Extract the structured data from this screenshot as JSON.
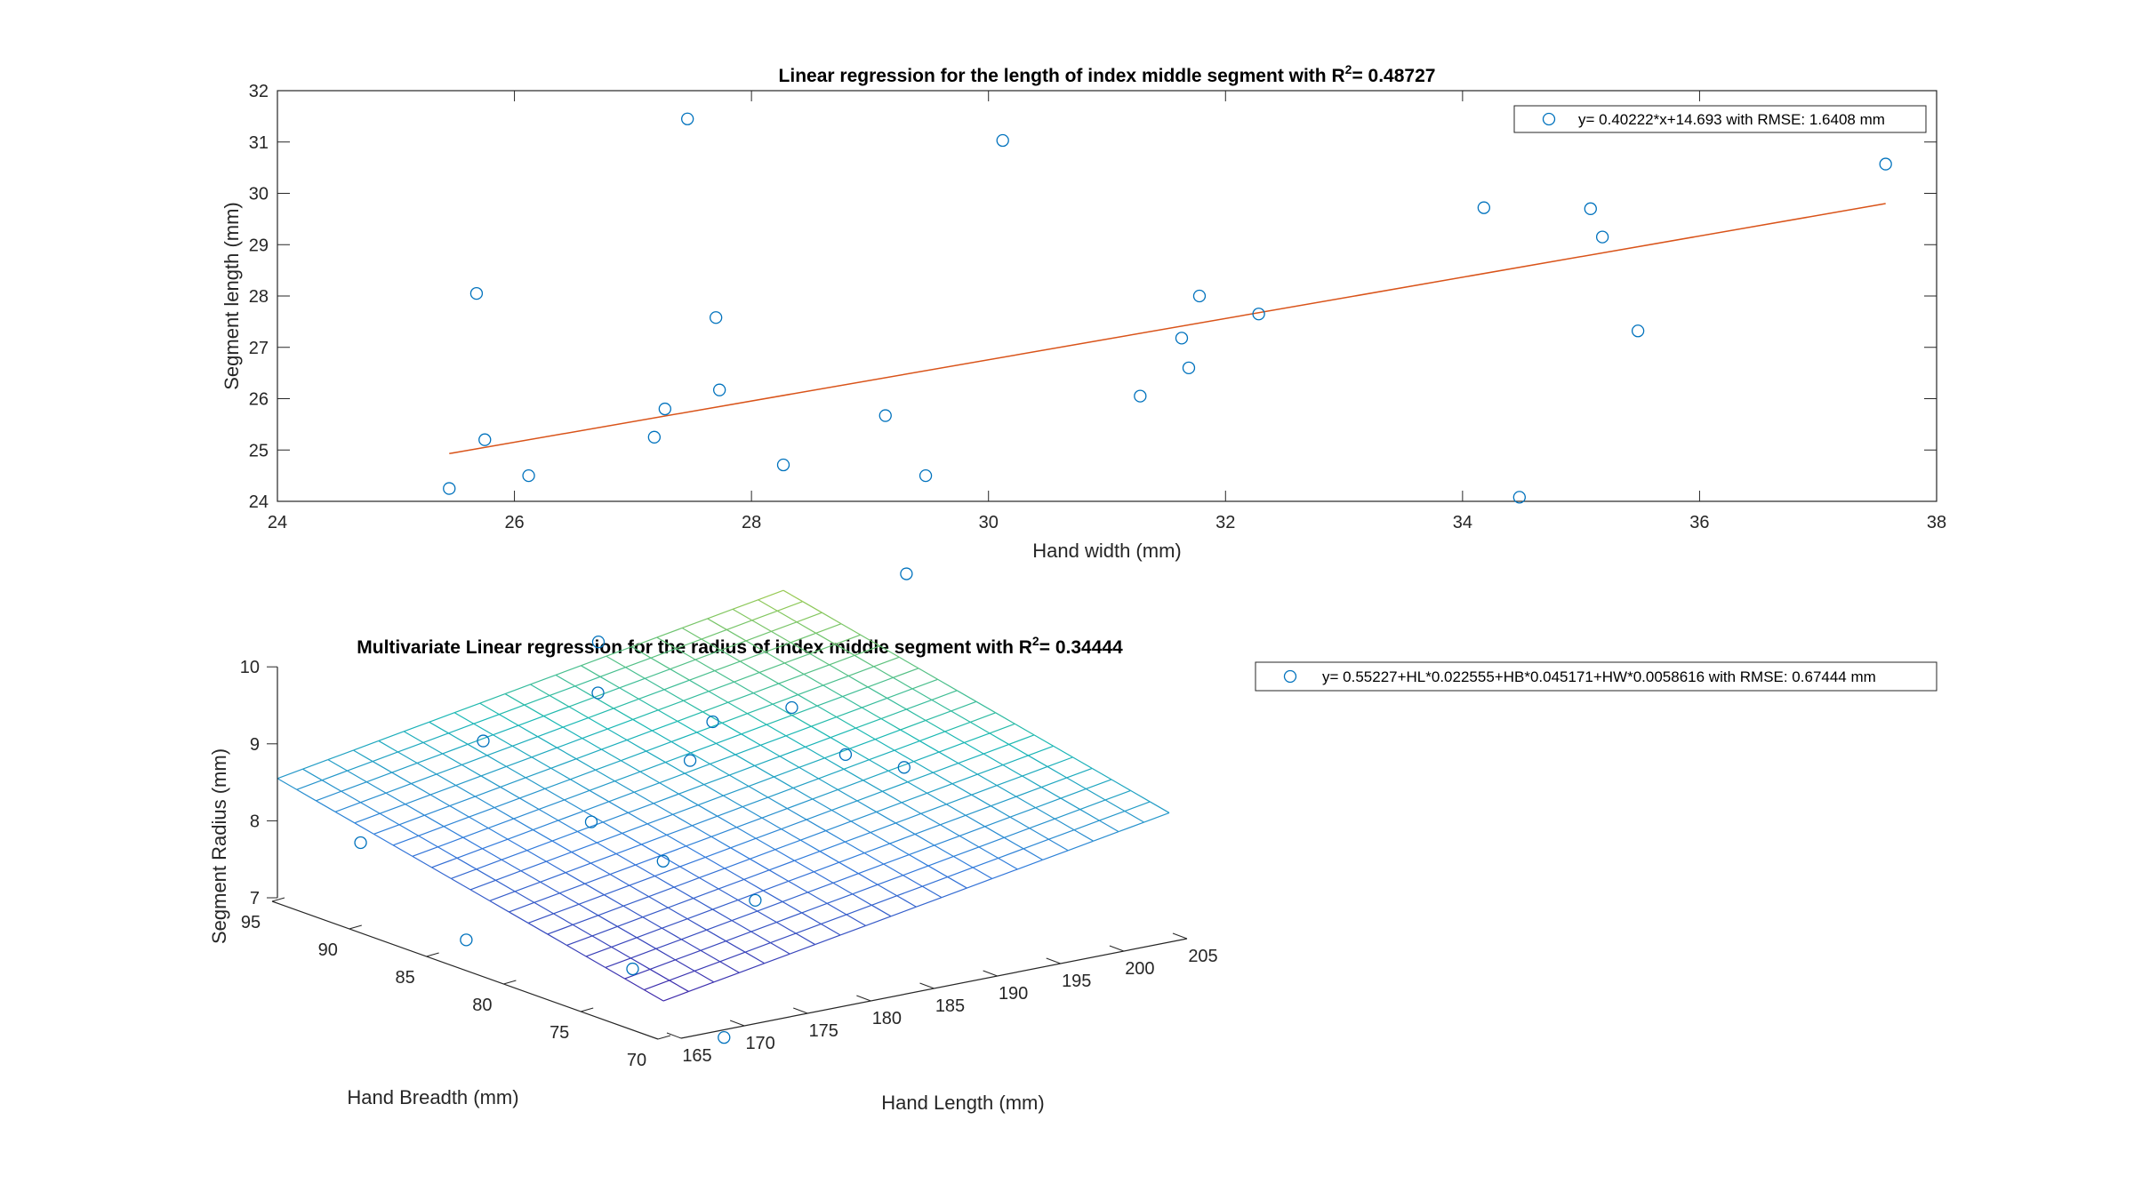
{
  "chart_data": [
    {
      "type": "scatter",
      "title": "Linear regression for the length of index middle segment with R",
      "title_sup": "2",
      "title_suffix": "= 0.48727",
      "xlabel": "Hand width (mm)",
      "ylabel": "Segment length (mm)",
      "xlim": [
        24,
        38
      ],
      "ylim": [
        24,
        32
      ],
      "xticks": [
        "24",
        "26",
        "28",
        "30",
        "32",
        "34",
        "36",
        "38"
      ],
      "yticks": [
        "24",
        "25",
        "26",
        "27",
        "28",
        "29",
        "30",
        "31",
        "32"
      ],
      "grid": false,
      "legend_position": "top-right",
      "legend_label": "y= 0.40222*x+14.693 with RMSE: 1.6408 mm",
      "marker_color": "#0072BD",
      "fit_color": "#D95319",
      "points": [
        [
          25.45,
          24.25
        ],
        [
          25.68,
          28.05
        ],
        [
          25.75,
          25.2
        ],
        [
          26.12,
          24.5
        ],
        [
          27.18,
          25.25
        ],
        [
          27.27,
          25.8
        ],
        [
          27.46,
          31.45
        ],
        [
          27.7,
          27.58
        ],
        [
          27.73,
          26.17
        ],
        [
          29.13,
          25.67
        ],
        [
          29.47,
          24.5
        ],
        [
          30.12,
          31.03
        ],
        [
          31.28,
          26.05
        ],
        [
          31.63,
          27.18
        ],
        [
          31.69,
          26.6
        ],
        [
          31.78,
          28.0
        ],
        [
          32.28,
          27.65
        ],
        [
          34.18,
          29.72
        ],
        [
          34.48,
          24.08
        ],
        [
          35.08,
          29.7
        ],
        [
          35.18,
          29.15
        ],
        [
          35.48,
          27.32
        ],
        [
          37.57,
          30.57
        ]
      ],
      "fit_line": {
        "x": [
          25.45,
          37.57
        ],
        "y": [
          24.93,
          29.8
        ]
      }
    },
    {
      "type": "surface3d",
      "title": "Multivariate Linear regression for the radius of index middle segment with R",
      "title_sup": "2",
      "title_suffix": "= 0.34444",
      "xlabel": "Hand Length (mm)",
      "ylabel": "Hand Breadth (mm)",
      "zlabel": "Segment Radius (mm)",
      "xlim": [
        165,
        205
      ],
      "ylim": [
        70,
        95
      ],
      "zlim": [
        7,
        10
      ],
      "xticks": [
        "165",
        "170",
        "175",
        "180",
        "185",
        "190",
        "195",
        "200",
        "205"
      ],
      "yticks": [
        "70",
        "75",
        "80",
        "85",
        "90",
        "95"
      ],
      "zticks": [
        "7",
        "8",
        "9",
        "10"
      ],
      "legend_position": "top-right",
      "legend_label": "y= 0.55227+HL*0.022555+HB*0.045171+HW*0.0058616 with RMSE: 0.67444 mm",
      "marker_color": "#0072BD",
      "surface": {
        "x_range": [
          165,
          205
        ],
        "y_range": [
          70,
          95
        ],
        "grid_x": 20,
        "grid_y": 20,
        "z_low": 7.45,
        "z_high": 10.15,
        "z_ylow_xhigh": 8.6,
        "z_yhigh_xlow": 8.55
      },
      "points": [
        [
          1,
          1,
          11.33
        ],
        [
          0.9,
          0.55,
          10.85
        ],
        [
          0.52,
          0.85,
          9.92
        ],
        [
          0.62,
          0.48,
          9.6
        ],
        [
          0.42,
          0.72,
          9.62
        ],
        [
          0.65,
          0.38,
          9.13
        ],
        [
          0.54,
          0.58,
          9.34
        ],
        [
          0.72,
          0.32,
          8.98
        ],
        [
          0.48,
          0.56,
          8.95
        ],
        [
          0.3,
          0.86,
          8.9
        ],
        [
          0.3,
          0.58,
          8.35
        ],
        [
          0.32,
          0.42,
          8.1
        ],
        [
          0.38,
          0.26,
          7.8
        ],
        [
          0.05,
          0.85,
          7.92
        ],
        [
          0.13,
          0.25,
          7.25
        ],
        [
          0.03,
          0.55,
          7.22
        ],
        [
          0.12,
          0.0,
          6.82
        ]
      ]
    }
  ]
}
